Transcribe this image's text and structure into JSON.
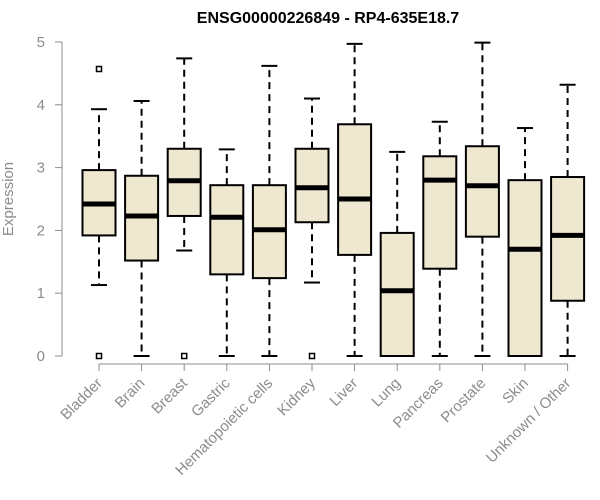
{
  "chart_data": {
    "type": "boxplot",
    "title": "ENSG00000226849 - RP4-635E18.7",
    "xlabel": "",
    "ylabel": "Expression",
    "ylim": [
      0,
      5
    ],
    "yticks": [
      "0",
      "1",
      "2",
      "3",
      "4",
      "5"
    ],
    "grid": false,
    "box_fill": "#efe8d0",
    "box_stroke": "#000000",
    "categories": [
      "Bladder",
      "Brain",
      "Breast",
      "Gastric",
      "Hematopoietic cells",
      "Kidney",
      "Liver",
      "Lung",
      "Pancreas",
      "Prostate",
      "Skin",
      "Unknown / Other"
    ],
    "boxes": [
      {
        "whisker_low": 1.13,
        "q1": 1.92,
        "median": 2.42,
        "q3": 2.96,
        "whisker_high": 3.93,
        "outliers": [
          4.57,
          0
        ]
      },
      {
        "whisker_low": 0,
        "q1": 1.52,
        "median": 2.23,
        "q3": 2.87,
        "whisker_high": 4.06,
        "outliers": []
      },
      {
        "whisker_low": 1.68,
        "q1": 2.23,
        "median": 2.79,
        "q3": 3.3,
        "whisker_high": 4.74,
        "outliers": [
          0
        ]
      },
      {
        "whisker_low": 0,
        "q1": 1.3,
        "median": 2.21,
        "q3": 2.72,
        "whisker_high": 3.29,
        "outliers": []
      },
      {
        "whisker_low": 0,
        "q1": 1.24,
        "median": 2.01,
        "q3": 2.72,
        "whisker_high": 4.62,
        "outliers": []
      },
      {
        "whisker_low": 1.17,
        "q1": 2.13,
        "median": 2.68,
        "q3": 3.3,
        "whisker_high": 4.1,
        "outliers": [
          0
        ]
      },
      {
        "whisker_low": 0,
        "q1": 1.61,
        "median": 2.5,
        "q3": 3.69,
        "whisker_high": 4.97,
        "outliers": []
      },
      {
        "whisker_low": 0,
        "q1": 0,
        "median": 1.04,
        "q3": 1.96,
        "whisker_high": 3.25,
        "outliers": []
      },
      {
        "whisker_low": 0,
        "q1": 1.39,
        "median": 2.8,
        "q3": 3.18,
        "whisker_high": 3.73,
        "outliers": []
      },
      {
        "whisker_low": 0,
        "q1": 1.9,
        "median": 2.71,
        "q3": 3.34,
        "whisker_high": 4.99,
        "outliers": []
      },
      {
        "whisker_low": 0,
        "q1": 0,
        "median": 1.7,
        "q3": 2.8,
        "whisker_high": 3.63,
        "outliers": []
      },
      {
        "whisker_low": 0,
        "q1": 0.88,
        "median": 1.92,
        "q3": 2.85,
        "whisker_high": 4.32,
        "outliers": []
      }
    ]
  }
}
